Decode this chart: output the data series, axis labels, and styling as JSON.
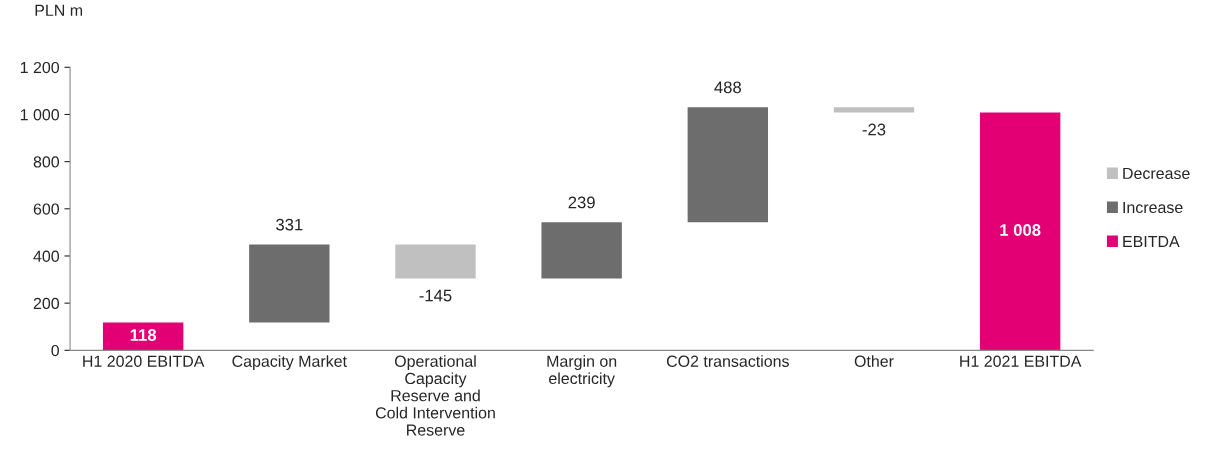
{
  "chart_data": {
    "type": "bar",
    "ylabel": "PLN m",
    "categories": [
      "H1 2020 EBITDA",
      "Capacity Market",
      "Operational\nCapacity\nReserve and\nCold Intervention\nReserve",
      "Margin on\nelectricity",
      "CO2 transactions",
      "Other",
      "H1 2021 EBITDA"
    ],
    "series": [
      {
        "name": "Decrease",
        "color": "#c0c0c0",
        "values": [
          null,
          null,
          -145,
          null,
          null,
          -23,
          null
        ],
        "base": [
          null,
          null,
          449,
          null,
          null,
          1031,
          null
        ],
        "value_labels": [
          null,
          null,
          "-145",
          null,
          null,
          "-23",
          null
        ]
      },
      {
        "name": "Increase",
        "color": "#6d6d6d",
        "values": [
          null,
          331,
          null,
          239,
          488,
          null,
          null
        ],
        "base": [
          null,
          118,
          null,
          304,
          543,
          null,
          null
        ],
        "value_labels": [
          null,
          "331",
          null,
          "239",
          "488",
          null,
          null
        ]
      },
      {
        "name": "EBITDA",
        "color": "#e20074",
        "values": [
          118,
          null,
          null,
          null,
          null,
          null,
          1008
        ],
        "base": [
          0,
          null,
          null,
          null,
          null,
          null,
          0
        ],
        "value_labels": [
          "118",
          null,
          null,
          null,
          null,
          null,
          "1 008"
        ]
      }
    ],
    "ylim": [
      0,
      1200
    ],
    "yticks": [
      0,
      200,
      400,
      600,
      800,
      {
        "value": 1000,
        "label": "1 000"
      },
      {
        "value": 1200,
        "label": "1 200"
      }
    ],
    "grid": false,
    "legend": "right"
  }
}
